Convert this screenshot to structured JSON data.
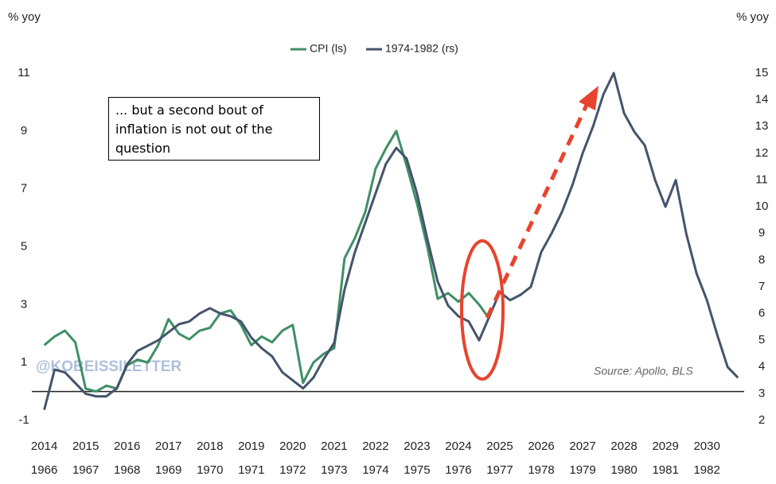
{
  "chart_data": {
    "type": "line",
    "y_label": "% yoy",
    "y2_label": "% yoy",
    "annotation": "... but a second bout of inflation is not out of the question",
    "watermark": "@KOBEISSILETTER",
    "source": "Source: Apollo, BLS",
    "xlim": [
      2013.7,
      2030.9
    ],
    "xticks": [
      2014,
      2015,
      2016,
      2017,
      2018,
      2019,
      2020,
      2021,
      2022,
      2023,
      2024,
      2025,
      2026,
      2027,
      2028,
      2029,
      2030
    ],
    "x2lim": [
      1965.7,
      1982.9
    ],
    "x2ticks": [
      1966,
      1967,
      1968,
      1969,
      1970,
      1971,
      1972,
      1973,
      1974,
      1975,
      1976,
      1977,
      1978,
      1979,
      1980,
      1981,
      1982
    ],
    "ylim": [
      -1,
      11
    ],
    "yticks": [
      -1,
      1,
      3,
      5,
      7,
      9,
      11
    ],
    "y2lim": [
      2,
      15
    ],
    "y2ticks": [
      2,
      3,
      4,
      5,
      6,
      7,
      8,
      9,
      10,
      11,
      12,
      13,
      14,
      15
    ],
    "series": [
      {
        "name": "CPI (ls)",
        "color": "#3f8f66",
        "x": [
          2014,
          2014.25,
          2014.5,
          2014.75,
          2015,
          2015.25,
          2015.5,
          2015.75,
          2016,
          2016.25,
          2016.5,
          2016.75,
          2017,
          2017.25,
          2017.5,
          2017.75,
          2018,
          2018.25,
          2018.5,
          2018.75,
          2019,
          2019.25,
          2019.5,
          2019.75,
          2020,
          2020.25,
          2020.5,
          2020.75,
          2021,
          2021.25,
          2021.5,
          2021.75,
          2022,
          2022.25,
          2022.5,
          2022.75,
          2023,
          2023.25,
          2023.5,
          2023.75,
          2024,
          2024.25,
          2024.5,
          2024.75
        ],
        "values": [
          1.6,
          1.9,
          2.1,
          1.7,
          0.1,
          0.0,
          0.2,
          0.1,
          0.9,
          1.1,
          1.0,
          1.6,
          2.5,
          2.0,
          1.8,
          2.1,
          2.2,
          2.7,
          2.8,
          2.3,
          1.6,
          1.9,
          1.7,
          2.1,
          2.3,
          0.3,
          1.0,
          1.3,
          1.5,
          4.6,
          5.3,
          6.2,
          7.7,
          8.4,
          9.0,
          7.8,
          6.5,
          5.0,
          3.2,
          3.4,
          3.1,
          3.4,
          3.0,
          2.5
        ]
      },
      {
        "name": "1974-1982 (rs)",
        "color": "#44546a",
        "axis": "y2",
        "x": [
          2014,
          2014.25,
          2014.5,
          2014.75,
          2015,
          2015.25,
          2015.5,
          2015.75,
          2016,
          2016.25,
          2016.5,
          2016.75,
          2017,
          2017.25,
          2017.5,
          2017.75,
          2018,
          2018.25,
          2018.5,
          2018.75,
          2019,
          2019.25,
          2019.5,
          2019.75,
          2020,
          2020.25,
          2020.5,
          2020.75,
          2021,
          2021.25,
          2021.5,
          2021.75,
          2022,
          2022.25,
          2022.5,
          2022.75,
          2023,
          2023.25,
          2023.5,
          2023.75,
          2024,
          2024.25,
          2024.5,
          2024.75,
          2025,
          2025.25,
          2025.5,
          2025.75,
          2026,
          2026.25,
          2026.5,
          2026.75,
          2027,
          2027.25,
          2027.5,
          2027.75,
          2028,
          2028.25,
          2028.5,
          2028.75,
          2029,
          2029.25,
          2029.5,
          2029.75,
          2030,
          2030.25,
          2030.5,
          2030.75
        ],
        "values": [
          2.4,
          3.9,
          3.8,
          3.4,
          3.0,
          2.9,
          2.9,
          3.2,
          4.1,
          4.6,
          4.8,
          5.0,
          5.3,
          5.6,
          5.7,
          6.0,
          6.2,
          6.0,
          5.9,
          5.7,
          5.1,
          4.7,
          4.4,
          3.8,
          3.5,
          3.2,
          3.6,
          4.3,
          4.9,
          6.9,
          8.3,
          9.4,
          10.5,
          11.6,
          12.2,
          11.8,
          10.5,
          8.8,
          7.2,
          6.3,
          5.9,
          5.7,
          5.0,
          5.9,
          6.8,
          6.5,
          6.7,
          7.0,
          8.3,
          9.0,
          9.8,
          10.8,
          12.0,
          13.0,
          14.2,
          15.0,
          13.5,
          12.8,
          12.3,
          11.0,
          10.0,
          11.0,
          9.0,
          7.5,
          6.5,
          5.2,
          4.0,
          3.6
        ]
      }
    ]
  }
}
